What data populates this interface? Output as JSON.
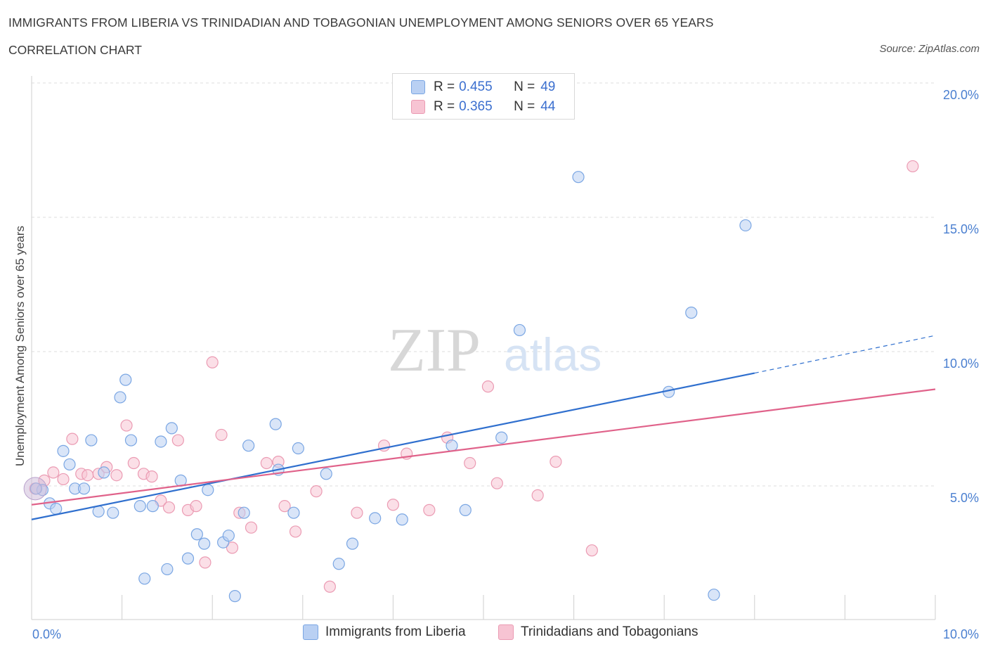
{
  "header": {
    "title": "IMMIGRANTS FROM LIBERIA VS TRINIDADIAN AND TOBAGONIAN UNEMPLOYMENT AMONG SENIORS OVER 65 YEARS",
    "subtitle": "CORRELATION CHART",
    "source": "Source: ZipAtlas.com"
  },
  "watermark": {
    "zip": "ZIP",
    "atlas": "atlas"
  },
  "legend_top": [
    {
      "r_label": "R =",
      "r_value": "0.455",
      "n_label": "N =",
      "n_value": "49"
    },
    {
      "r_label": "R =",
      "r_value": "0.365",
      "n_label": "N =",
      "n_value": "44"
    }
  ],
  "colors": {
    "blue_fill": "#b9d0f3",
    "blue_stroke": "#7aa6e3",
    "blue_line": "#2f6fce",
    "pink_fill": "#f7c4d3",
    "pink_stroke": "#eb9bb3",
    "pink_line": "#e0628a",
    "grid": "#dedede",
    "axis_text": "#4a7fd0"
  },
  "chart_data": {
    "type": "scatter",
    "title": "IMMIGRANTS FROM LIBERIA VS TRINIDADIAN AND TOBAGONIAN UNEMPLOYMENT AMONG SENIORS OVER 65 YEARS",
    "xlabel": "",
    "ylabel": "Unemployment Among Seniors over 65 years",
    "xlim": [
      0,
      10
    ],
    "ylim": [
      0,
      20.5
    ],
    "x_tick_labels": [
      "0.0%",
      "10.0%"
    ],
    "y_ticks": [
      5,
      10,
      15,
      20
    ],
    "y_tick_labels": [
      "5.0%",
      "10.0%",
      "15.0%",
      "20.0%"
    ],
    "grid": true,
    "legend_position": "top-center and bottom",
    "series": [
      {
        "name": "Immigrants from Liberia",
        "color": "#b9d0f3",
        "trend": {
          "x": [
            0,
            8
          ],
          "y": [
            3.75,
            9.2
          ],
          "extended_to": [
            10,
            10.6
          ]
        },
        "points": [
          [
            0.12,
            4.85
          ],
          [
            0.2,
            4.35
          ],
          [
            0.27,
            4.15
          ],
          [
            0.35,
            6.3
          ],
          [
            0.42,
            5.8
          ],
          [
            0.48,
            4.9
          ],
          [
            0.58,
            4.9
          ],
          [
            0.66,
            6.7
          ],
          [
            0.74,
            4.05
          ],
          [
            0.8,
            5.5
          ],
          [
            0.9,
            4.0
          ],
          [
            0.98,
            8.3
          ],
          [
            1.04,
            8.95
          ],
          [
            1.1,
            6.7
          ],
          [
            1.2,
            4.25
          ],
          [
            1.25,
            1.55
          ],
          [
            1.34,
            4.25
          ],
          [
            1.43,
            6.65
          ],
          [
            1.5,
            1.9
          ],
          [
            1.55,
            7.15
          ],
          [
            1.65,
            5.2
          ],
          [
            1.73,
            2.3
          ],
          [
            1.83,
            3.2
          ],
          [
            1.91,
            2.85
          ],
          [
            1.95,
            4.85
          ],
          [
            2.12,
            2.9
          ],
          [
            2.18,
            3.15
          ],
          [
            2.25,
            0.9
          ],
          [
            2.35,
            4.0
          ],
          [
            2.4,
            6.5
          ],
          [
            2.7,
            7.3
          ],
          [
            2.73,
            5.6
          ],
          [
            2.9,
            4.0
          ],
          [
            2.95,
            6.4
          ],
          [
            3.26,
            5.45
          ],
          [
            3.4,
            2.1
          ],
          [
            3.55,
            2.85
          ],
          [
            3.8,
            3.8
          ],
          [
            4.1,
            3.75
          ],
          [
            4.65,
            6.5
          ],
          [
            4.8,
            4.1
          ],
          [
            5.2,
            6.8
          ],
          [
            5.4,
            10.8
          ],
          [
            6.05,
            16.5
          ],
          [
            7.05,
            8.5
          ],
          [
            7.3,
            11.45
          ],
          [
            7.55,
            0.95
          ],
          [
            7.9,
            14.7
          ],
          [
            0.05,
            4.9
          ]
        ]
      },
      {
        "name": "Trinidadians and Tobagonians",
        "color": "#f7c4d3",
        "trend": {
          "x": [
            0,
            10
          ],
          "y": [
            4.3,
            8.6
          ]
        },
        "points": [
          [
            0.04,
            4.9
          ],
          [
            0.14,
            5.2
          ],
          [
            0.24,
            5.5
          ],
          [
            0.35,
            5.25
          ],
          [
            0.45,
            6.75
          ],
          [
            0.55,
            5.45
          ],
          [
            0.62,
            5.4
          ],
          [
            0.74,
            5.45
          ],
          [
            0.83,
            5.7
          ],
          [
            0.94,
            5.4
          ],
          [
            1.05,
            7.25
          ],
          [
            1.13,
            5.85
          ],
          [
            1.24,
            5.45
          ],
          [
            1.33,
            5.35
          ],
          [
            1.43,
            4.45
          ],
          [
            1.52,
            4.2
          ],
          [
            1.62,
            6.7
          ],
          [
            1.73,
            4.1
          ],
          [
            1.82,
            4.25
          ],
          [
            1.92,
            2.15
          ],
          [
            2.0,
            9.6
          ],
          [
            2.1,
            6.9
          ],
          [
            2.22,
            2.7
          ],
          [
            2.3,
            4.0
          ],
          [
            2.43,
            3.45
          ],
          [
            2.6,
            5.85
          ],
          [
            2.73,
            5.9
          ],
          [
            2.8,
            4.25
          ],
          [
            2.92,
            3.3
          ],
          [
            3.15,
            4.8
          ],
          [
            3.3,
            1.25
          ],
          [
            3.6,
            4.0
          ],
          [
            3.9,
            6.5
          ],
          [
            4.0,
            4.3
          ],
          [
            4.15,
            6.2
          ],
          [
            4.4,
            4.1
          ],
          [
            4.6,
            6.8
          ],
          [
            4.85,
            5.85
          ],
          [
            5.05,
            8.7
          ],
          [
            5.15,
            5.1
          ],
          [
            5.6,
            4.65
          ],
          [
            5.8,
            5.9
          ],
          [
            6.2,
            2.6
          ],
          [
            9.75,
            16.9
          ]
        ]
      }
    ]
  }
}
